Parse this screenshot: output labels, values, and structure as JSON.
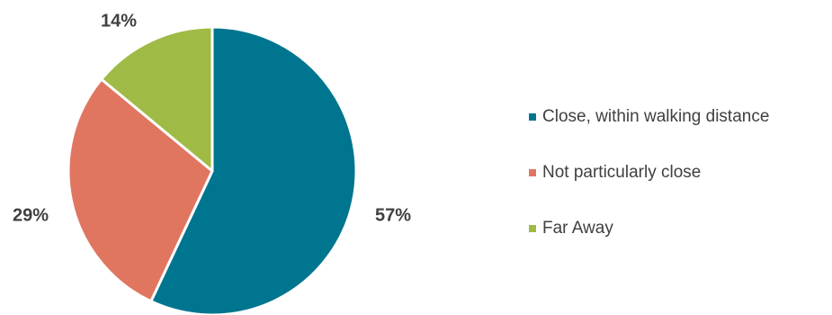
{
  "chart_data": {
    "type": "pie",
    "title": "",
    "categories": [
      "Close, within walking distance",
      "Not particularly close",
      "Far Away"
    ],
    "values": [
      57,
      29,
      14
    ],
    "labels": [
      "57%",
      "29%",
      "14%"
    ],
    "colors": [
      "#00758f",
      "#e07660",
      "#9fbb45"
    ],
    "legend_position": "right"
  }
}
